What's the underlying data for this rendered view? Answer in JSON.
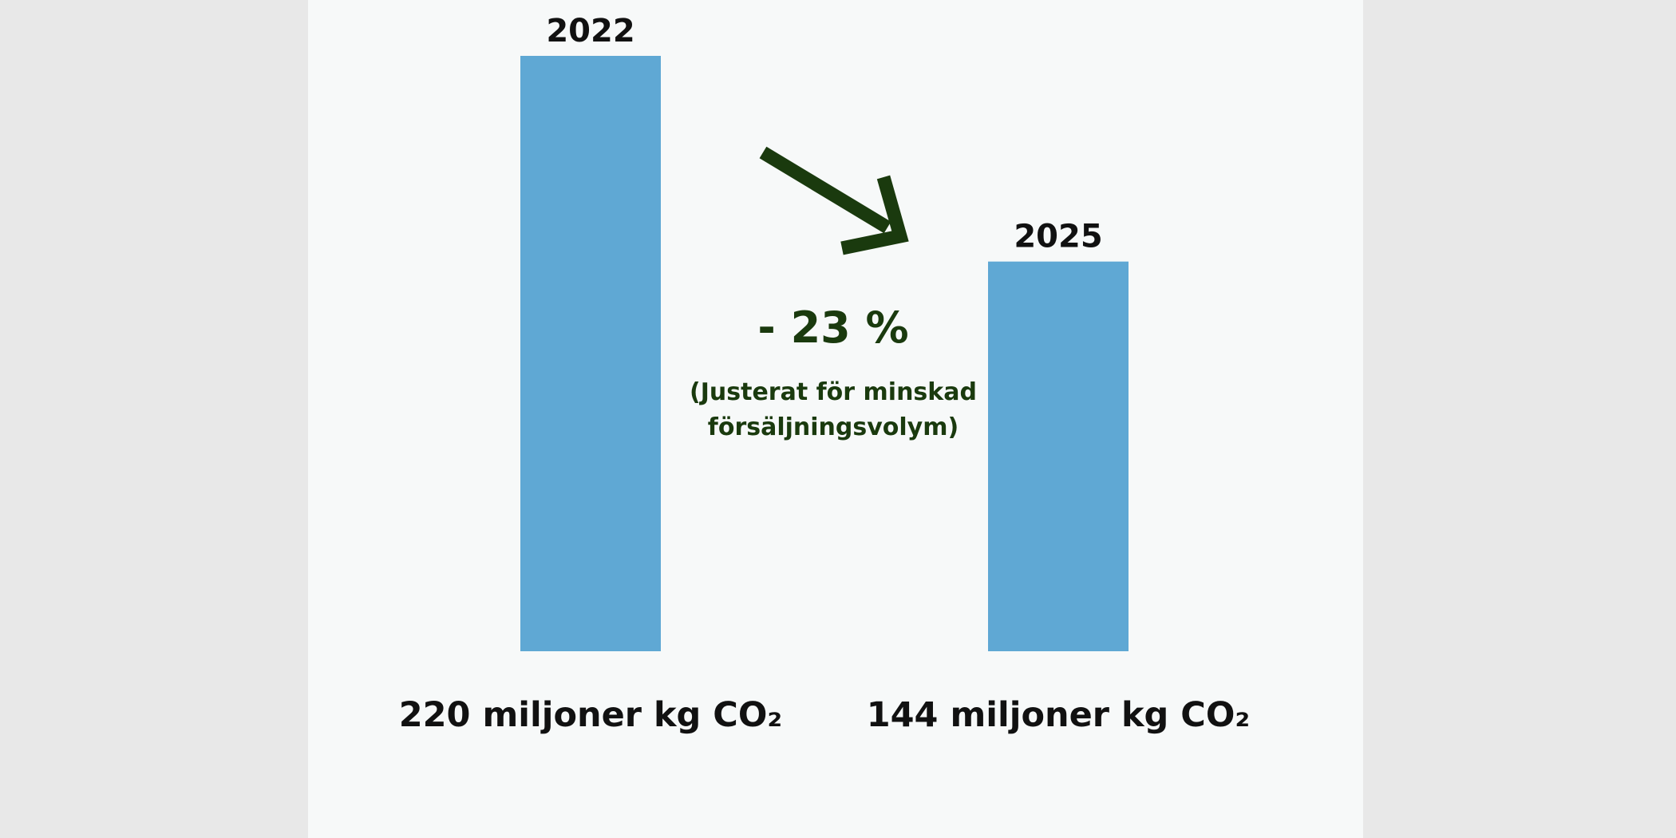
{
  "colors": {
    "background": "#e8e8e8",
    "panel": "#f7f9f9",
    "bar": "#5fa8d4",
    "accent": "#1a3a0e",
    "text": "#111111"
  },
  "annotation": {
    "change": "- 23 %",
    "note_line1": "(Justerat för minskad",
    "note_line2": "försäljningsvolym)",
    "arrow_icon": "arrow-down-right-icon"
  },
  "chart_data": {
    "type": "bar",
    "categories": [
      "2022",
      "2025"
    ],
    "values": [
      220,
      144
    ],
    "value_labels": [
      "220 miljoner kg CO₂",
      "144 miljoner kg CO₂"
    ],
    "unit": "miljoner kg CO₂",
    "ylim": [
      0,
      220
    ],
    "grid": false,
    "legend": "none"
  }
}
